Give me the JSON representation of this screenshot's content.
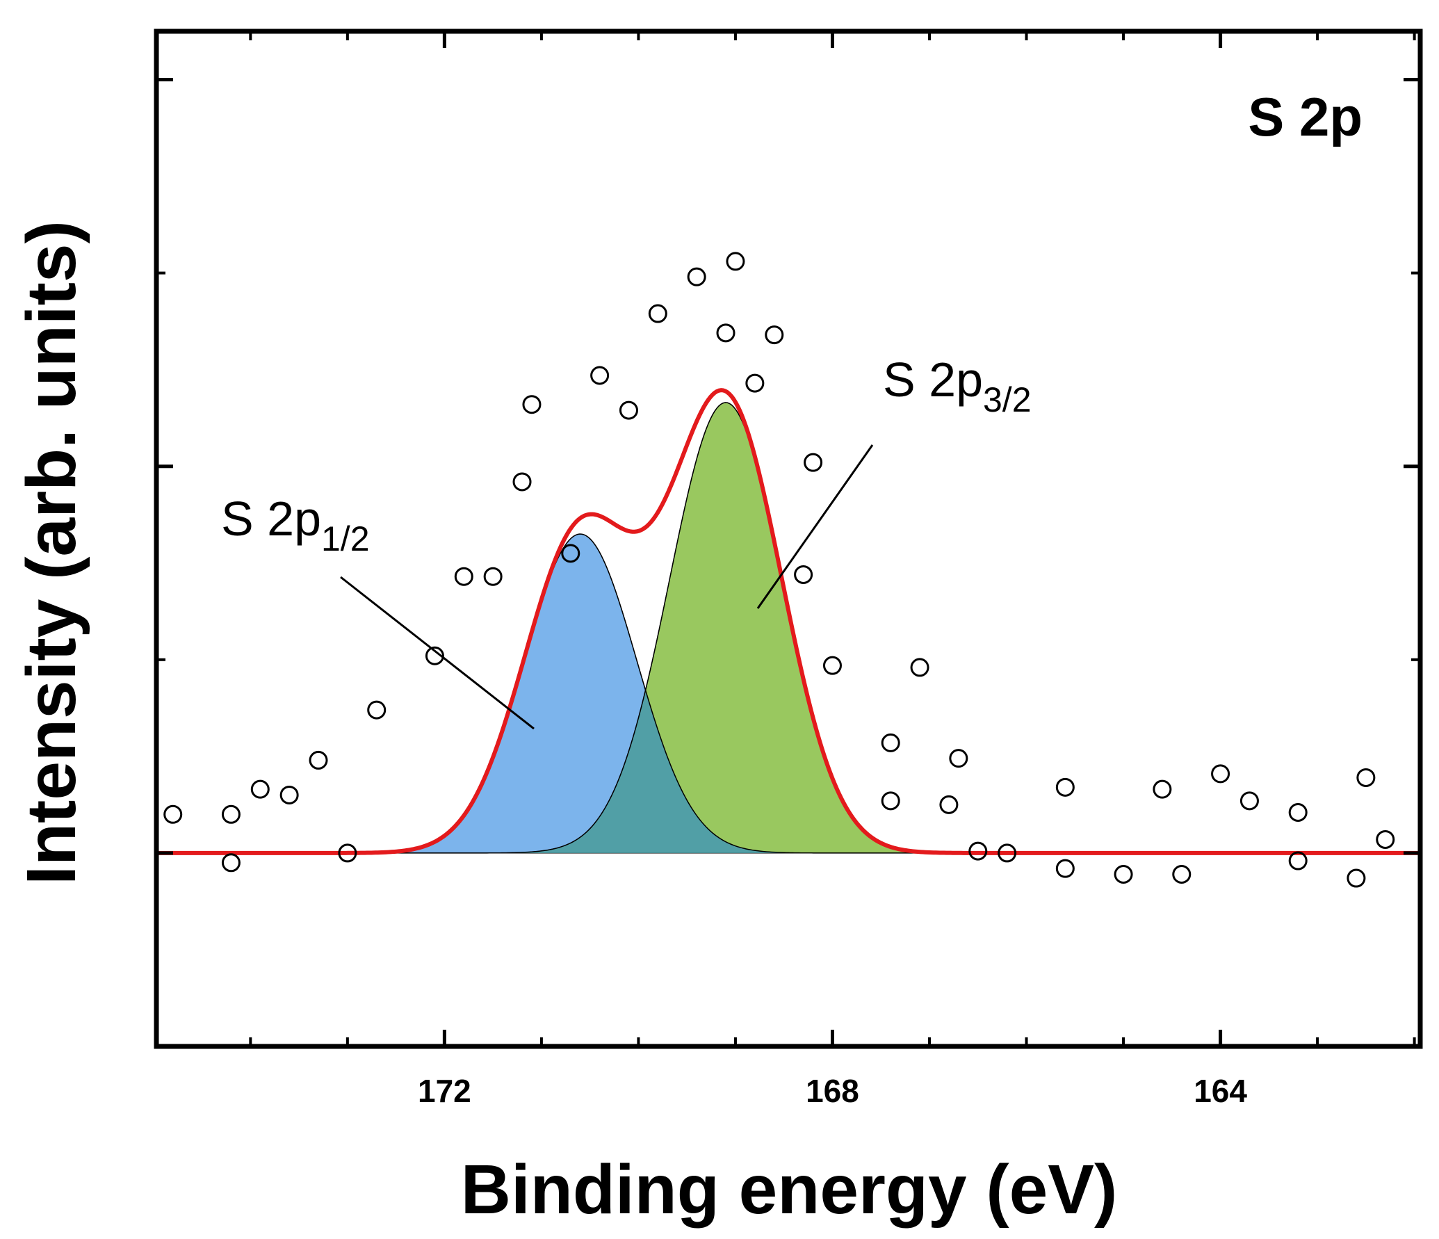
{
  "chart_data": {
    "type": "scatter",
    "title": "S 2p",
    "xlabel": "Binding energy (eV)",
    "ylabel": "Intensity (arb. units)",
    "xlim": [
      174.97,
      161.94
    ],
    "ylim": [
      -1.0,
      4.25
    ],
    "x_reversed": true,
    "x_ticks": [
      172,
      168,
      164
    ],
    "x_tick_labels": [
      "172",
      "168",
      "164"
    ],
    "grid": false,
    "colors": {
      "fit": "#e31a1c",
      "peak_1_2": "#7cb4ec",
      "peak_3_2": "#99c85f",
      "overlap": "#519fa6",
      "markers": "#000000"
    },
    "series": [
      {
        "name": "S 2p1/2",
        "type": "area",
        "center": 170.6,
        "amplitude": 1.65,
        "sigma": 0.58
      },
      {
        "name": "S 2p3/2",
        "type": "area",
        "center": 169.1,
        "amplitude": 2.33,
        "sigma": 0.58
      },
      {
        "name": "fit",
        "type": "line"
      },
      {
        "name": "data",
        "type": "scatter",
        "points": [
          [
            174.8,
            0.2
          ],
          [
            174.2,
            0.2
          ],
          [
            174.2,
            -0.05
          ],
          [
            173.9,
            0.33
          ],
          [
            173.6,
            0.3
          ],
          [
            173.3,
            0.48
          ],
          [
            173.0,
            0.0
          ],
          [
            172.7,
            0.74
          ],
          [
            172.1,
            1.02
          ],
          [
            171.8,
            1.43
          ],
          [
            171.5,
            1.43
          ],
          [
            171.2,
            1.92
          ],
          [
            171.1,
            2.32
          ],
          [
            170.7,
            1.55
          ],
          [
            170.4,
            2.47
          ],
          [
            170.1,
            2.29
          ],
          [
            169.8,
            2.79
          ],
          [
            169.4,
            2.98
          ],
          [
            169.1,
            2.69
          ],
          [
            169.0,
            3.06
          ],
          [
            168.8,
            2.43
          ],
          [
            168.6,
            2.68
          ],
          [
            168.2,
            2.02
          ],
          [
            168.3,
            1.44
          ],
          [
            168.0,
            0.97
          ],
          [
            167.4,
            0.57
          ],
          [
            167.4,
            0.27
          ],
          [
            167.1,
            0.96
          ],
          [
            166.8,
            0.25
          ],
          [
            166.7,
            0.49
          ],
          [
            166.5,
            0.01
          ],
          [
            166.2,
            0.0
          ],
          [
            165.6,
            0.34
          ],
          [
            165.6,
            -0.08
          ],
          [
            165.0,
            -0.11
          ],
          [
            164.6,
            0.33
          ],
          [
            164.4,
            -0.11
          ],
          [
            164.0,
            0.41
          ],
          [
            163.7,
            0.27
          ],
          [
            163.2,
            -0.04
          ],
          [
            163.2,
            0.21
          ],
          [
            162.5,
            0.39
          ],
          [
            162.6,
            -0.13
          ],
          [
            162.3,
            0.07
          ]
        ]
      }
    ],
    "annotations": [
      {
        "text": "S 2p",
        "sub": "1/2",
        "target": "S 2p1/2"
      },
      {
        "text": "S 2p",
        "sub": "3/2",
        "target": "S 2p3/2"
      }
    ]
  }
}
